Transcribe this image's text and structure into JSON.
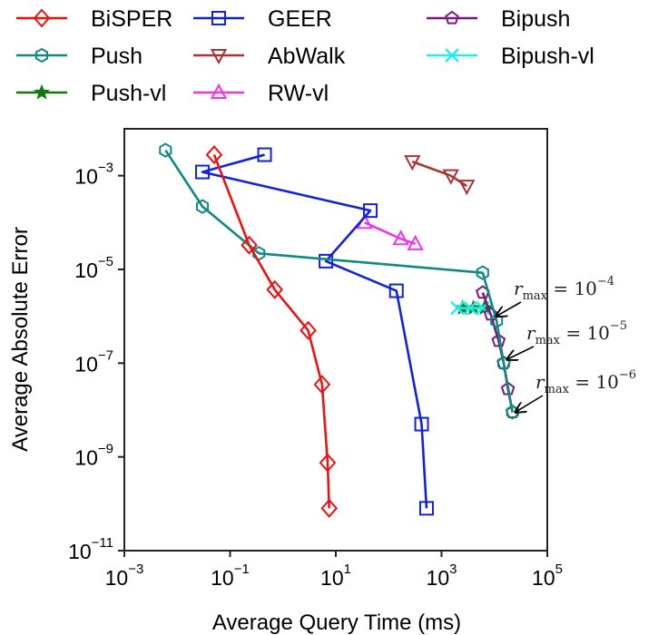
{
  "chart_data": {
    "type": "line",
    "xlabel": "Average Query Time (ms)",
    "ylabel": "Average Absolute Error",
    "xscale": "log",
    "yscale": "log",
    "xlim": [
      0.001,
      100000
    ],
    "ylim": [
      1e-11,
      0.01
    ],
    "x_ticks": [
      {
        "base": "10",
        "exp": "−3",
        "value": 0.001
      },
      {
        "base": "10",
        "exp": "−1",
        "value": 0.1
      },
      {
        "base": "10",
        "exp": "1",
        "value": 10
      },
      {
        "base": "10",
        "exp": "3",
        "value": 1000
      },
      {
        "base": "10",
        "exp": "5",
        "value": 100000
      }
    ],
    "y_ticks": [
      {
        "base": "10",
        "exp": "−11",
        "value": 1e-11
      },
      {
        "base": "10",
        "exp": "−9",
        "value": 1e-09
      },
      {
        "base": "10",
        "exp": "−7",
        "value": 1e-07
      },
      {
        "base": "10",
        "exp": "−5",
        "value": 1e-05
      },
      {
        "base": "10",
        "exp": "−3",
        "value": 0.001
      }
    ],
    "grid": false,
    "legend_placement": "top (above plot, 3 columns)",
    "series": [
      {
        "name": "BiSPER",
        "color": "#ee1111",
        "marker": "diamond",
        "points": [
          [
            0.05,
            0.0028
          ],
          [
            0.23,
            3.3e-05
          ],
          [
            0.7,
            3.7e-06
          ],
          [
            3.0,
            5e-07
          ],
          [
            5.5,
            3.5e-08
          ],
          [
            7.0,
            7.5e-10
          ],
          [
            7.5,
            8e-11
          ]
        ]
      },
      {
        "name": "Push",
        "color": "#0f8a83",
        "marker": "hexagon",
        "points": [
          [
            0.006,
            0.0035
          ],
          [
            0.03,
            0.00022
          ],
          [
            0.35,
            2.2e-05
          ],
          [
            6000,
            8.5e-06
          ],
          [
            11000,
            8e-07
          ],
          [
            15000,
            1e-07
          ],
          [
            22000,
            9e-09
          ]
        ]
      },
      {
        "name": "Push-vl",
        "color": "#0c7a0c",
        "marker": "star",
        "points": [
          [
            2500,
            1.5e-06
          ],
          [
            4000,
            1.5e-06
          ],
          [
            6500,
            1.5e-06
          ]
        ]
      },
      {
        "name": "GEER",
        "color": "#1122dd",
        "marker": "square",
        "points": [
          [
            0.45,
            0.0028
          ],
          [
            0.03,
            0.0012
          ],
          [
            45,
            0.00018
          ],
          [
            6.5,
            1.5e-05
          ],
          [
            140,
            3.5e-06
          ],
          [
            420,
            5e-09
          ],
          [
            520,
            8e-11
          ]
        ]
      },
      {
        "name": "AbWalk",
        "color": "#aa3333",
        "marker": "triangle-down",
        "points": [
          [
            280,
            0.002
          ],
          [
            1500,
            0.001
          ],
          [
            3000,
            0.0006
          ]
        ]
      },
      {
        "name": "RW-vl",
        "color": "#ee33ee",
        "marker": "triangle-up",
        "points": [
          [
            35,
            0.0001
          ],
          [
            170,
            4.5e-05
          ],
          [
            320,
            3.5e-05
          ]
        ]
      },
      {
        "name": "Bipush",
        "color": "#7a1a7a",
        "marker": "pentagon",
        "points": [
          [
            6000,
            3.2e-06
          ],
          [
            8500,
            1.1e-06
          ],
          [
            12000,
            3e-07
          ],
          [
            15000,
            1e-07
          ],
          [
            18000,
            2.8e-08
          ],
          [
            22000,
            9e-09
          ]
        ]
      },
      {
        "name": "Bipush-vl",
        "color": "#22eeee",
        "marker": "x",
        "points": [
          [
            2000,
            1.5e-06
          ],
          [
            3500,
            1.5e-06
          ],
          [
            6000,
            1.5e-06
          ]
        ]
      }
    ],
    "annotations": [
      {
        "text_lhs": "r",
        "text_sub": "max",
        "text_rhs": " = 10",
        "text_exp": "−4",
        "points_to": [
          10000,
          1e-06
        ]
      },
      {
        "text_lhs": "r",
        "text_sub": "max",
        "text_rhs": " = 10",
        "text_exp": "−5",
        "points_to": [
          16000,
          1.2e-07
        ]
      },
      {
        "text_lhs": "r",
        "text_sub": "max",
        "text_rhs": " = 10",
        "text_exp": "−6",
        "points_to": [
          23000,
          9e-09
        ]
      }
    ]
  }
}
